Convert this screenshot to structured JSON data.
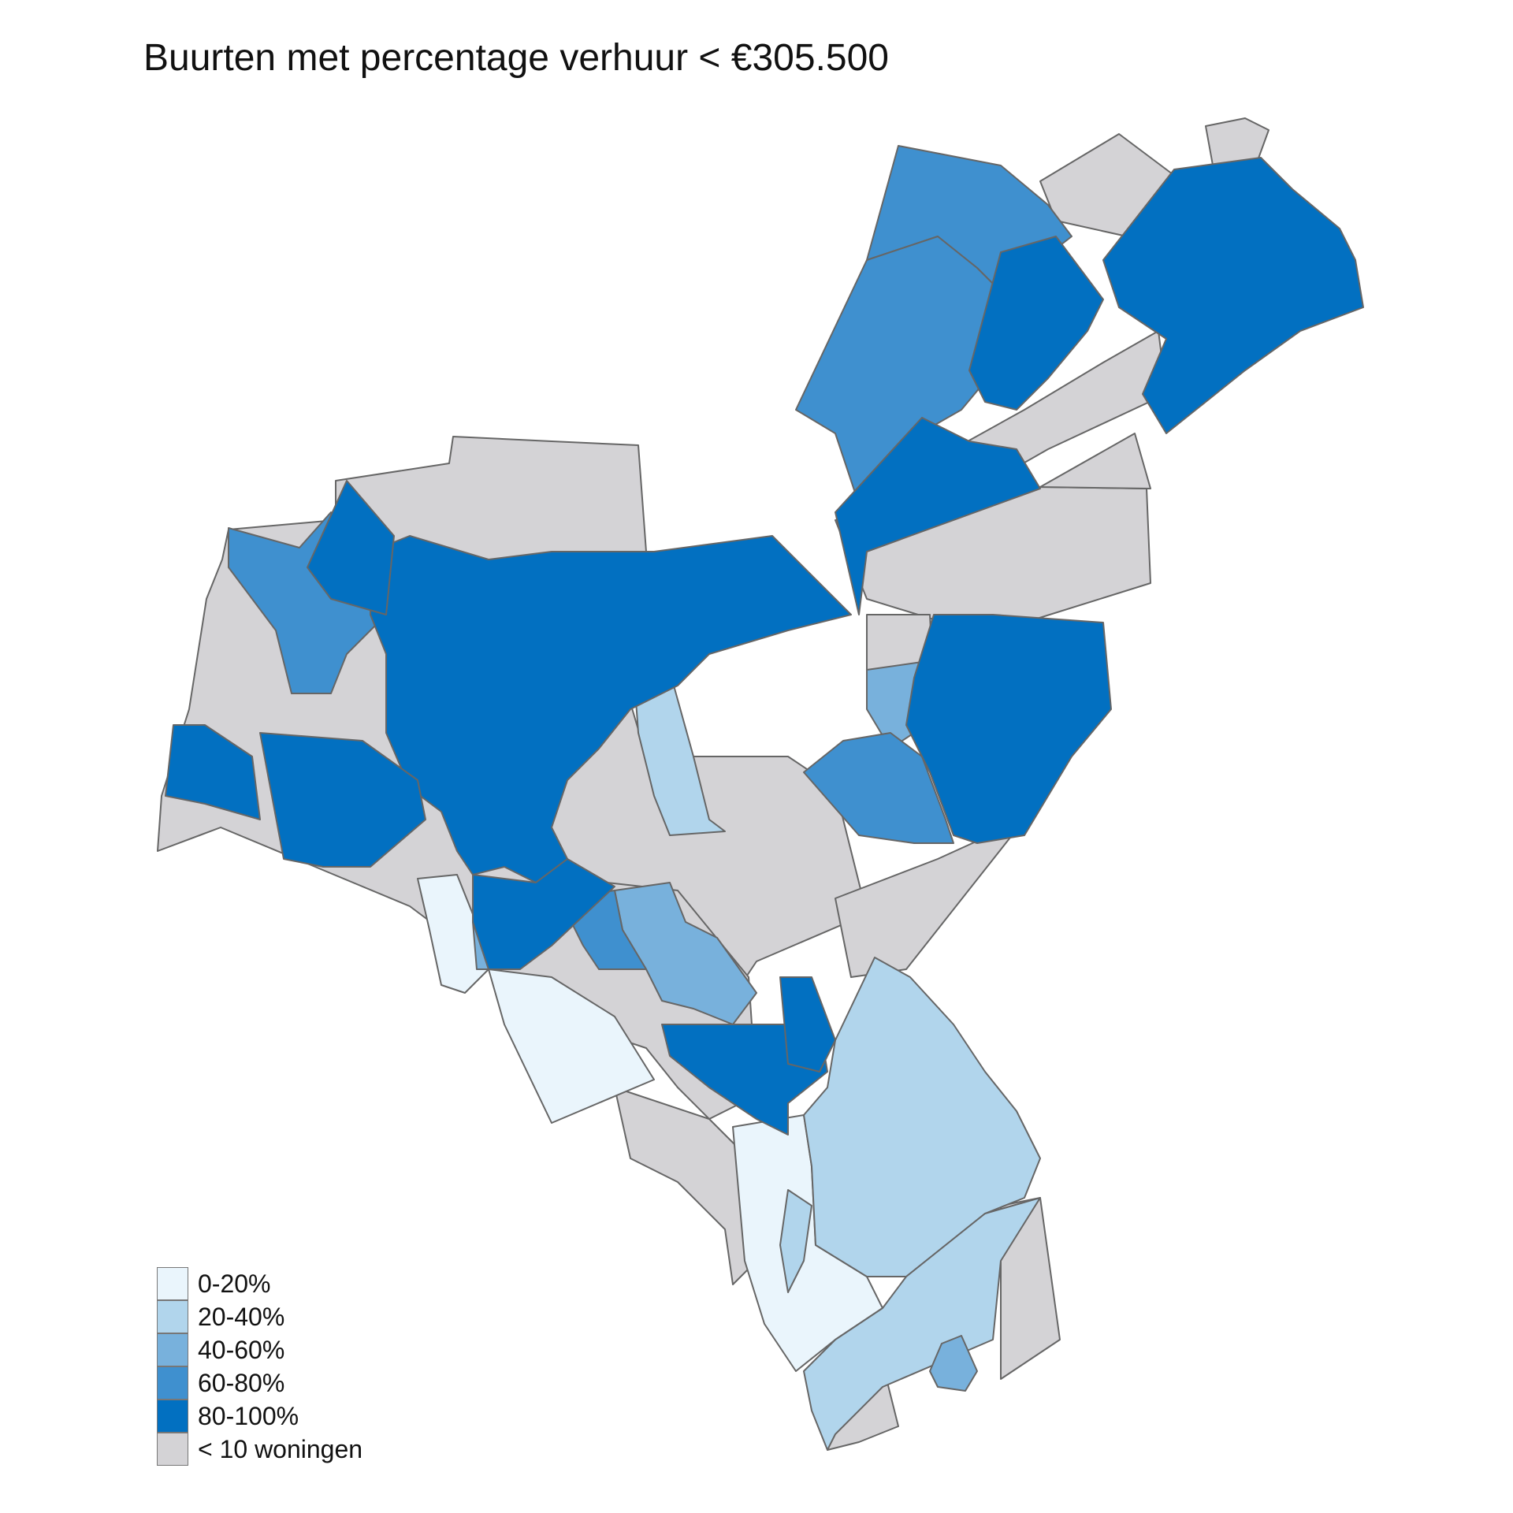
{
  "title": "Buurten met percentage verhuur < €305.500",
  "legend": [
    {
      "label": "0-20%",
      "color": "#eaf5fc"
    },
    {
      "label": "20-40%",
      "color": "#b1d5ec"
    },
    {
      "label": "40-60%",
      "color": "#78b1dc"
    },
    {
      "label": "60-80%",
      "color": "#3f90cf"
    },
    {
      "label": "80-100%",
      "color": "#0270c1"
    },
    {
      "label": "< 10 woningen",
      "color": "#d4d3d6"
    }
  ],
  "colors": {
    "border": "#666666",
    "background": "#ffffff"
  }
}
